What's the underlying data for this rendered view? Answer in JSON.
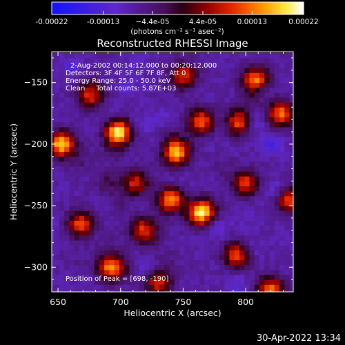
{
  "chart_data": {
    "type": "heatmap",
    "title": "Reconstructed RHESSI Image",
    "xlabel": "Heliocentric X (arcsec)",
    "ylabel": "Heliocentric Y (arcsec)",
    "xlim": [
      645,
      838
    ],
    "ylim": [
      -320,
      -125
    ],
    "x_ticks": [
      650,
      700,
      750,
      800
    ],
    "y_ticks": [
      -150,
      -200,
      -250,
      -300
    ],
    "colorbar": {
      "ticks": [
        -0.00022,
        -0.00013,
        -4.4e-05,
        4.4e-05,
        0.00013,
        0.00022
      ],
      "tick_labels": [
        "-0.00022",
        "-0.00013",
        "−4.4e-05",
        "4.4e-05",
        "0.00013",
        "0.00022"
      ],
      "range": [
        -0.00022,
        0.00022
      ],
      "unit_label": "(photons cm⁻² s⁻¹ asec⁻²)"
    },
    "annotations": [
      "2-Aug-2002 00:14:12.000 to 00:20:12.000",
      "Detectors: 3F 4F 5F 6F 7F 8F, Att 0",
      "Energy Range: 25.0 - 50.0 keV",
      "Clean     Total counts: 5.87E+03"
    ],
    "peak_label": "Position of Peak = [698, -190]",
    "blobs": [
      {
        "x": 698,
        "y": -190,
        "v": 0.00022
      },
      {
        "x": 653,
        "y": -200,
        "v": 0.00018
      },
      {
        "x": 764,
        "y": -182,
        "v": 0.00016
      },
      {
        "x": 745,
        "y": -206,
        "v": 0.00017
      },
      {
        "x": 765,
        "y": -255,
        "v": 0.00019
      },
      {
        "x": 740,
        "y": -245,
        "v": 0.00015
      },
      {
        "x": 808,
        "y": -148,
        "v": 0.00015
      },
      {
        "x": 795,
        "y": -182,
        "v": 0.00013
      },
      {
        "x": 828,
        "y": -175,
        "v": 0.00013
      },
      {
        "x": 692,
        "y": -300,
        "v": 0.00014
      },
      {
        "x": 668,
        "y": -265,
        "v": 0.00011
      },
      {
        "x": 793,
        "y": -290,
        "v": 0.00012
      },
      {
        "x": 718,
        "y": -270,
        "v": 0.00012
      },
      {
        "x": 820,
        "y": -318,
        "v": 0.00013
      },
      {
        "x": 800,
        "y": -232,
        "v": 0.00011
      },
      {
        "x": 712,
        "y": -232,
        "v": 0.0001
      },
      {
        "x": 676,
        "y": -160,
        "v": 9e-05
      },
      {
        "x": 835,
        "y": -245,
        "v": 0.00011
      },
      {
        "x": 751,
        "y": -145,
        "v": 0.0001
      },
      {
        "x": 730,
        "y": -312,
        "v": 9e-05
      }
    ]
  },
  "footer": {
    "timestamp": "30-Apr-2022 13:34"
  }
}
